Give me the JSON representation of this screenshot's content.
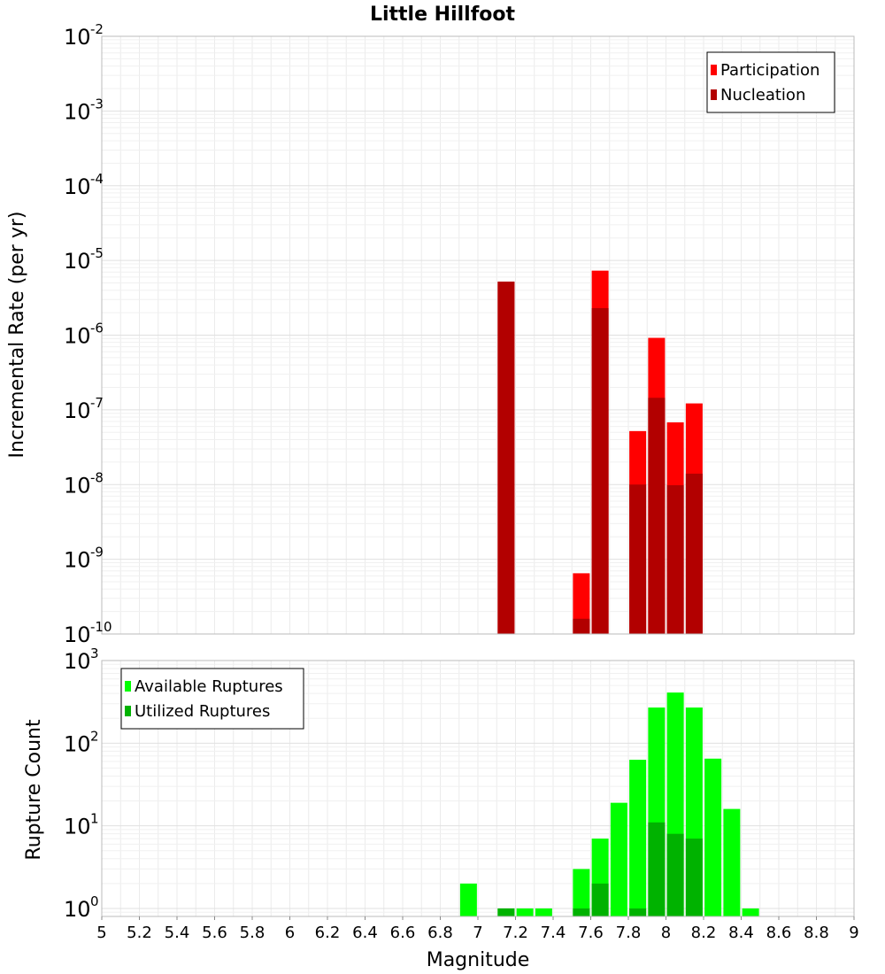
{
  "chart_data": [
    {
      "type": "bar",
      "title": "Little Hillfoot",
      "xlabel": "",
      "ylabel": "Incremental Rate (per yr)",
      "y_scale": "log",
      "ylim": [
        1e-10,
        0.01
      ],
      "xlim": [
        5,
        9
      ],
      "grid": true,
      "legend_position": "top-right",
      "bar_overlay": true,
      "series": [
        {
          "name": "Participation",
          "color": "#ff0000",
          "points": [
            {
              "x": 7.15,
              "y": 5.2e-06
            },
            {
              "x": 7.55,
              "y": 6.5e-10
            },
            {
              "x": 7.65,
              "y": 7.3e-06
            },
            {
              "x": 7.85,
              "y": 5.2e-08
            },
            {
              "x": 7.95,
              "y": 9.2e-07
            },
            {
              "x": 8.05,
              "y": 6.8e-08
            },
            {
              "x": 8.15,
              "y": 1.22e-07
            }
          ]
        },
        {
          "name": "Nucleation",
          "color": "#b20000",
          "points": [
            {
              "x": 7.15,
              "y": 5.2e-06
            },
            {
              "x": 7.55,
              "y": 1.6e-10
            },
            {
              "x": 7.65,
              "y": 2.3e-06
            },
            {
              "x": 7.85,
              "y": 1e-08
            },
            {
              "x": 7.95,
              "y": 1.45e-07
            },
            {
              "x": 8.05,
              "y": 9.8e-09
            },
            {
              "x": 8.15,
              "y": 1.4e-08
            }
          ]
        }
      ]
    },
    {
      "type": "bar",
      "title": "",
      "xlabel": "Magnitude",
      "ylabel": "Rupture Count",
      "y_scale": "log",
      "ylim": [
        0.8,
        1000
      ],
      "xlim": [
        5,
        9
      ],
      "grid": true,
      "legend_position": "top-left",
      "bar_overlay": true,
      "x_ticks": [
        "5",
        "5.2",
        "5.4",
        "5.6",
        "5.8",
        "6",
        "6.2",
        "6.4",
        "6.6",
        "6.8",
        "7",
        "7.2",
        "7.4",
        "7.6",
        "7.8",
        "8",
        "8.2",
        "8.4",
        "8.6",
        "8.8",
        "9"
      ],
      "series": [
        {
          "name": "Available Ruptures",
          "color": "#00ff00",
          "points": [
            {
              "x": 6.95,
              "y": 2
            },
            {
              "x": 7.15,
              "y": 1
            },
            {
              "x": 7.25,
              "y": 1
            },
            {
              "x": 7.35,
              "y": 1
            },
            {
              "x": 7.55,
              "y": 3
            },
            {
              "x": 7.65,
              "y": 7
            },
            {
              "x": 7.75,
              "y": 19
            },
            {
              "x": 7.85,
              "y": 63
            },
            {
              "x": 7.95,
              "y": 270
            },
            {
              "x": 8.05,
              "y": 410
            },
            {
              "x": 8.15,
              "y": 270
            },
            {
              "x": 8.25,
              "y": 65
            },
            {
              "x": 8.35,
              "y": 16
            },
            {
              "x": 8.45,
              "y": 1
            }
          ]
        },
        {
          "name": "Utilized Ruptures",
          "color": "#00b200",
          "points": [
            {
              "x": 7.15,
              "y": 1
            },
            {
              "x": 7.55,
              "y": 1
            },
            {
              "x": 7.65,
              "y": 2
            },
            {
              "x": 7.85,
              "y": 1
            },
            {
              "x": 7.95,
              "y": 11
            },
            {
              "x": 8.05,
              "y": 8
            },
            {
              "x": 8.15,
              "y": 7
            }
          ]
        }
      ]
    }
  ]
}
